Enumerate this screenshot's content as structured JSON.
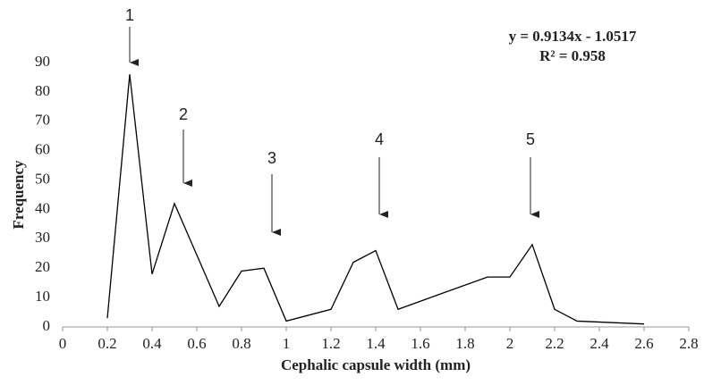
{
  "chart_data": {
    "type": "line",
    "x_label": "Cephalic capsule width (mm)",
    "y_label": "Frequency",
    "annotations": [
      "y = 0.9134x - 1.0517",
      "R² = 0.958"
    ],
    "arrow_labels": [
      "1",
      "2",
      "3",
      "4",
      "5"
    ],
    "x": [
      0.2,
      0.3,
      0.4,
      0.5,
      0.7,
      0.8,
      0.9,
      1.0,
      1.2,
      1.3,
      1.4,
      1.5,
      1.9,
      2.0,
      2.1,
      2.2,
      2.3,
      2.6
    ],
    "values": [
      3,
      86,
      18,
      42,
      7,
      19,
      20,
      2,
      6,
      22,
      26,
      6,
      17,
      17,
      28,
      6,
      2,
      1
    ],
    "color": "#000000",
    "xlim": [
      0,
      2.8
    ],
    "xticks": [
      0,
      {
        "value": 0.2,
        "label": "0.2"
      },
      {
        "value": 0.4,
        "label": "0.4"
      },
      {
        "value": 0.6,
        "label": "0.6"
      },
      {
        "value": 0.8,
        "label": "0.8"
      },
      1,
      1.2,
      1.4,
      1.6,
      1.8,
      2,
      2.2,
      2.4,
      2.6,
      2.8
    ],
    "ylim": [
      0,
      90
    ],
    "yticks": [
      0,
      10,
      20,
      30,
      40,
      50,
      60,
      70,
      80,
      90
    ]
  }
}
